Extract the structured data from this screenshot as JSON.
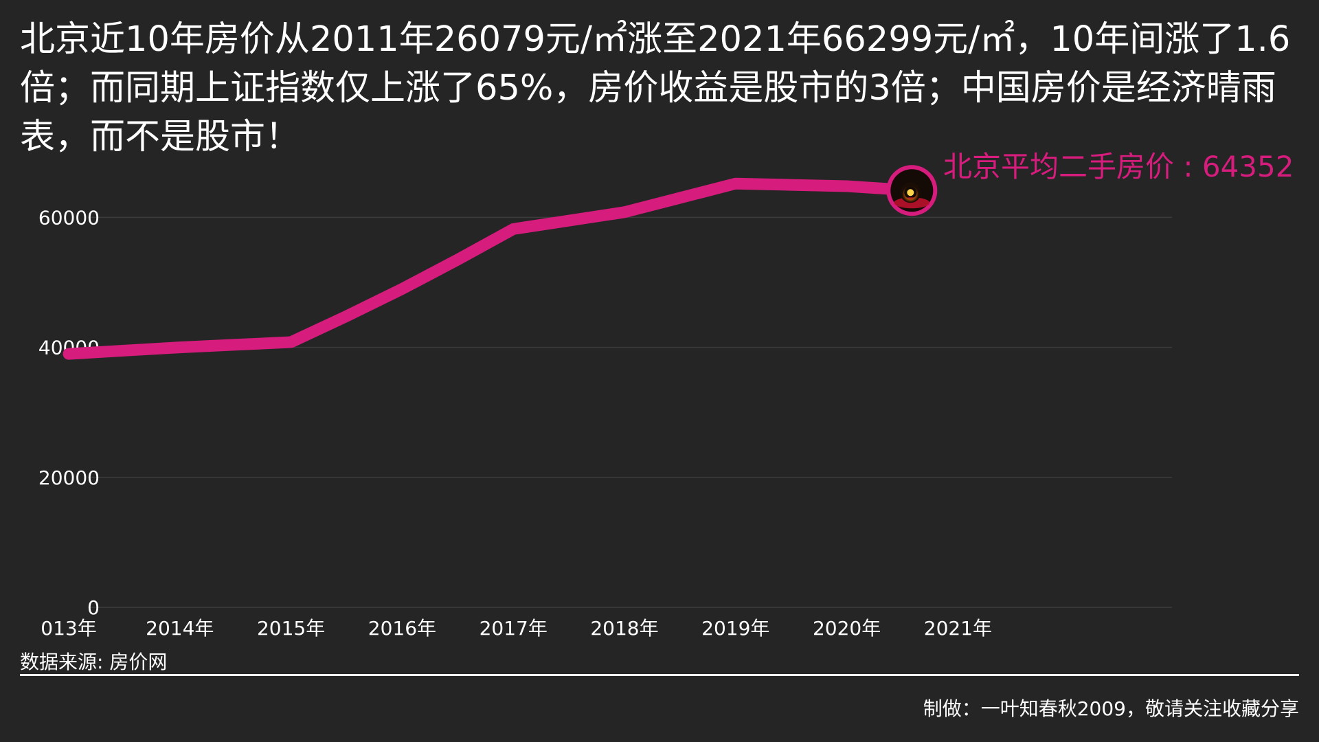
{
  "headline": "北京近10年房价从2011年26079元/㎡涨至2021年66299元/㎡，10年间涨了1.6倍；而同期上证指数仅上涨了65%，房价收益是股市的3倍；中国房价是经济晴雨表，而不是股市！",
  "source": "数据来源: 房价网",
  "credit": "制做：一叶知春秋2009，敬请关注收藏分享",
  "accent_color": "#d61c7c",
  "marker_icon": "orange-ring-badge-icon",
  "chart_data": {
    "type": "line",
    "title": "",
    "xlabel": "",
    "ylabel": "",
    "ylim": [
      0,
      65000
    ],
    "yticks": [
      0,
      20000,
      40000,
      60000
    ],
    "grid": true,
    "categories": [
      "013年",
      "2014年",
      "2015年",
      "2016年",
      "2017年",
      "2018年",
      "2019年",
      "2020年",
      "2021年"
    ],
    "series": [
      {
        "name": "北京平均二手房价",
        "x": [
          0,
          0.5,
          1,
          1.5,
          2,
          2.5,
          3,
          3.5,
          4,
          4.5,
          5,
          5.5,
          6,
          6.5,
          7,
          7.4
        ],
        "values": [
          39000,
          39500,
          40000,
          40400,
          40800,
          44800,
          49000,
          53500,
          58200,
          59500,
          60800,
          63000,
          65200,
          65000,
          64800,
          64352
        ],
        "end_label": "北京平均二手房价 : 64352"
      }
    ]
  }
}
